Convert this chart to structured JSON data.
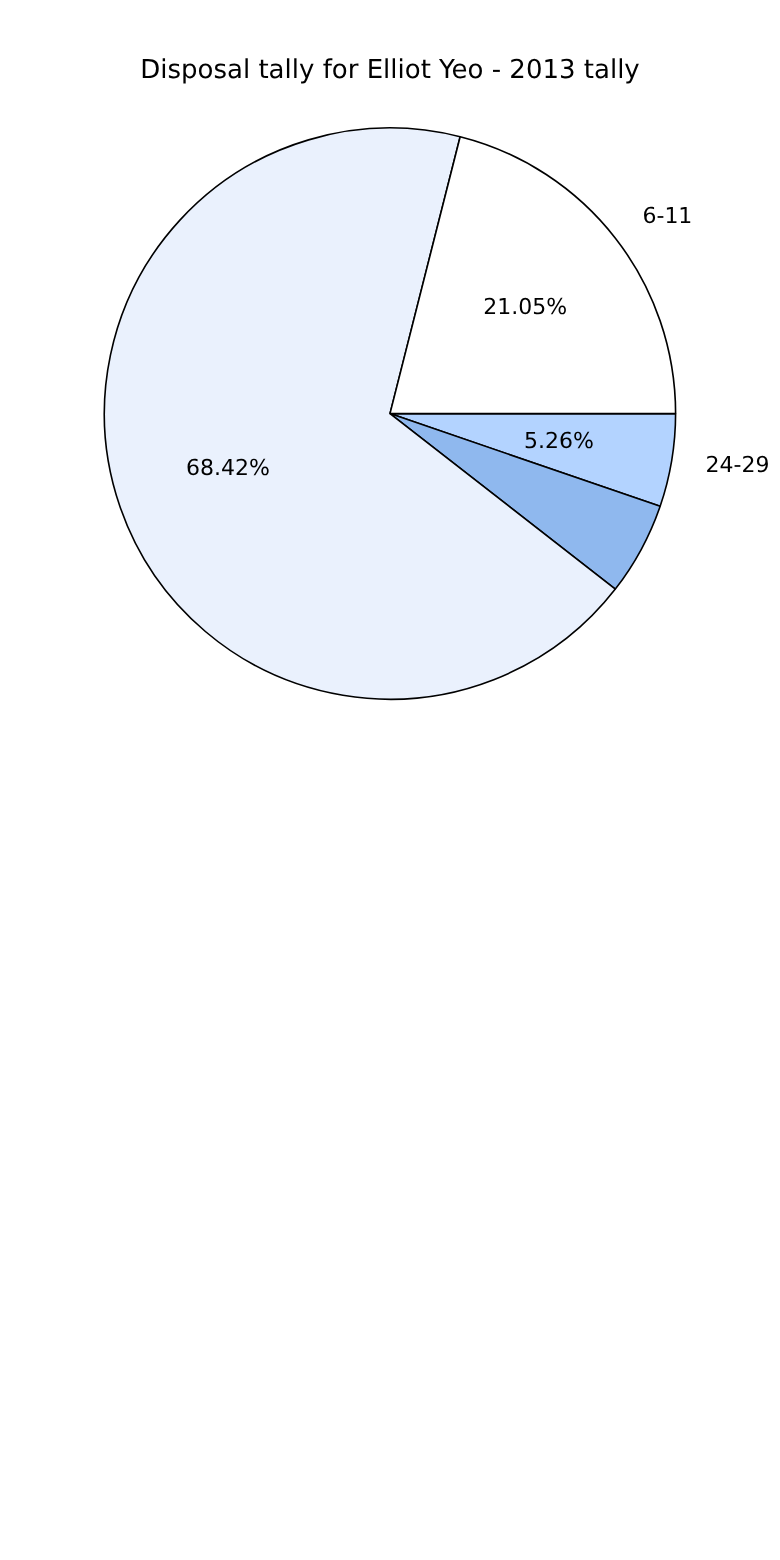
{
  "chart_data": {
    "type": "pie",
    "title": "Disposal tally for Elliot Yeo - 2013 tally",
    "categories": [
      "24-29",
      null,
      null,
      "6-11"
    ],
    "values": [
      5.26,
      5.27,
      68.42,
      21.05
    ],
    "colors": [
      "#b3d3ff",
      "#8fb8ee",
      "#eaf1fd",
      "#ffffff"
    ],
    "value_labels": [
      "5.26%",
      null,
      "68.42%",
      "21.05%"
    ],
    "legend": false
  }
}
